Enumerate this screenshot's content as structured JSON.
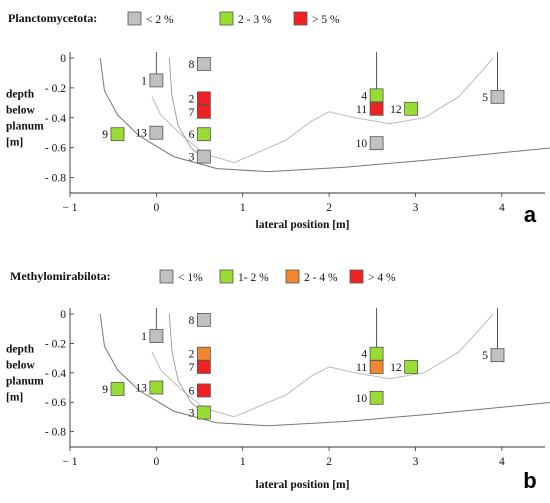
{
  "chart_data": [
    {
      "type": "scatter",
      "panel_letter": "a",
      "legend": {
        "title": "Planctomycetota:",
        "items": [
          {
            "label": "< 2 %",
            "color": "#c0c0c0"
          },
          {
            "label": "2 - 3 %",
            "color": "#99dd33"
          },
          {
            "label": "> 5 %",
            "color": "#ee2222"
          }
        ]
      },
      "xlabel": "lateral position [m]",
      "ylabel": [
        "depth",
        "below",
        "planum",
        "[m]"
      ],
      "xlim": [
        -1,
        4.5
      ],
      "ylim": [
        0,
        -0.85
      ],
      "xticks": [
        -1,
        0,
        1,
        2,
        3,
        4
      ],
      "yticks": [
        0,
        -0.2,
        -0.4,
        -0.6,
        -0.8
      ],
      "ytick_labels": [
        "0",
        "- 0.2",
        "- 0.4",
        "- 0.6",
        "- 0.8"
      ],
      "points": [
        {
          "label": "1",
          "x": 0.0,
          "y": -0.15,
          "class": "< 2 %",
          "color": "#c0c0c0",
          "label_side": "left",
          "borehole": true
        },
        {
          "label": "8",
          "x": 0.55,
          "y": -0.04,
          "class": "< 2 %",
          "color": "#c0c0c0",
          "label_side": "left",
          "borehole": false
        },
        {
          "label": "2",
          "x": 0.55,
          "y": -0.27,
          "class": "> 5 %",
          "color": "#ee2222",
          "label_side": "left",
          "borehole": false
        },
        {
          "label": "7",
          "x": 0.55,
          "y": -0.36,
          "class": "> 5 %",
          "color": "#ee2222",
          "label_side": "left",
          "borehole": false
        },
        {
          "label": "6",
          "x": 0.55,
          "y": -0.51,
          "class": "2 - 3 %",
          "color": "#99dd33",
          "label_side": "left",
          "borehole": false
        },
        {
          "label": "3",
          "x": 0.55,
          "y": -0.66,
          "class": "< 2 %",
          "color": "#c0c0c0",
          "label_side": "left",
          "borehole": false
        },
        {
          "label": "9",
          "x": -0.45,
          "y": -0.51,
          "class": "2 - 3 %",
          "color": "#99dd33",
          "label_side": "left",
          "borehole": false
        },
        {
          "label": "13",
          "x": 0.0,
          "y": -0.5,
          "class": "< 2 %",
          "color": "#c0c0c0",
          "label_side": "left",
          "borehole": false
        },
        {
          "label": "4",
          "x": 2.55,
          "y": -0.25,
          "class": "2 - 3 %",
          "color": "#99dd33",
          "label_side": "left",
          "borehole": true
        },
        {
          "label": "11",
          "x": 2.55,
          "y": -0.34,
          "class": "> 5 %",
          "color": "#ee2222",
          "label_side": "left",
          "borehole": false
        },
        {
          "label": "12",
          "x": 2.95,
          "y": -0.34,
          "class": "2 - 3 %",
          "color": "#99dd33",
          "label_side": "left",
          "borehole": false
        },
        {
          "label": "10",
          "x": 2.55,
          "y": -0.57,
          "class": "< 2 %",
          "color": "#c0c0c0",
          "label_side": "left",
          "borehole": false
        },
        {
          "label": "5",
          "x": 3.95,
          "y": -0.26,
          "class": "< 2 %",
          "color": "#c0c0c0",
          "label_side": "left",
          "borehole": true
        }
      ]
    },
    {
      "type": "scatter",
      "panel_letter": "b",
      "legend": {
        "title": "Methylomirabilota:",
        "items": [
          {
            "label": "< 1%",
            "color": "#c0c0c0"
          },
          {
            "label": "1- 2 %",
            "color": "#99dd33"
          },
          {
            "label": "2 - 4 %",
            "color": "#f08830"
          },
          {
            "label": "> 4 %",
            "color": "#ee2222"
          }
        ]
      },
      "xlabel": "lateral position [m]",
      "ylabel": [
        "depth",
        "below",
        "planum",
        "[m]"
      ],
      "xlim": [
        -1,
        4.5
      ],
      "ylim": [
        0,
        -0.85
      ],
      "xticks": [
        -1,
        0,
        1,
        2,
        3,
        4
      ],
      "yticks": [
        0,
        -0.2,
        -0.4,
        -0.6,
        -0.8
      ],
      "ytick_labels": [
        "0",
        "- 0.2",
        "- 0.4",
        "- 0.6",
        "- 0.8"
      ],
      "points": [
        {
          "label": "1",
          "x": 0.0,
          "y": -0.15,
          "class": "< 1%",
          "color": "#c0c0c0",
          "label_side": "left",
          "borehole": true
        },
        {
          "label": "8",
          "x": 0.55,
          "y": -0.04,
          "class": "< 1%",
          "color": "#c0c0c0",
          "label_side": "left",
          "borehole": false
        },
        {
          "label": "2",
          "x": 0.55,
          "y": -0.27,
          "class": "2 - 4 %",
          "color": "#f08830",
          "label_side": "left",
          "borehole": false
        },
        {
          "label": "7",
          "x": 0.55,
          "y": -0.36,
          "class": "> 4 %",
          "color": "#ee2222",
          "label_side": "left",
          "borehole": false
        },
        {
          "label": "6",
          "x": 0.55,
          "y": -0.52,
          "class": "> 4 %",
          "color": "#ee2222",
          "label_side": "left",
          "borehole": false
        },
        {
          "label": "3",
          "x": 0.55,
          "y": -0.67,
          "class": "1- 2 %",
          "color": "#99dd33",
          "label_side": "left",
          "borehole": false
        },
        {
          "label": "9",
          "x": -0.45,
          "y": -0.51,
          "class": "1- 2 %",
          "color": "#99dd33",
          "label_side": "left",
          "borehole": false
        },
        {
          "label": "13",
          "x": 0.0,
          "y": -0.5,
          "class": "1- 2 %",
          "color": "#99dd33",
          "label_side": "left",
          "borehole": false
        },
        {
          "label": "4",
          "x": 2.55,
          "y": -0.27,
          "class": "1- 2 %",
          "color": "#99dd33",
          "label_side": "left",
          "borehole": true
        },
        {
          "label": "11",
          "x": 2.55,
          "y": -0.36,
          "class": "2 - 4 %",
          "color": "#f08830",
          "label_side": "left",
          "borehole": false
        },
        {
          "label": "12",
          "x": 2.95,
          "y": -0.36,
          "class": "1- 2 %",
          "color": "#99dd33",
          "label_side": "left",
          "borehole": false
        },
        {
          "label": "10",
          "x": 2.55,
          "y": -0.57,
          "class": "1- 2 %",
          "color": "#99dd33",
          "label_side": "left",
          "borehole": false
        },
        {
          "label": "5",
          "x": 3.95,
          "y": -0.28,
          "class": "< 1%",
          "color": "#c0c0c0",
          "label_side": "left",
          "borehole": true
        }
      ]
    }
  ]
}
